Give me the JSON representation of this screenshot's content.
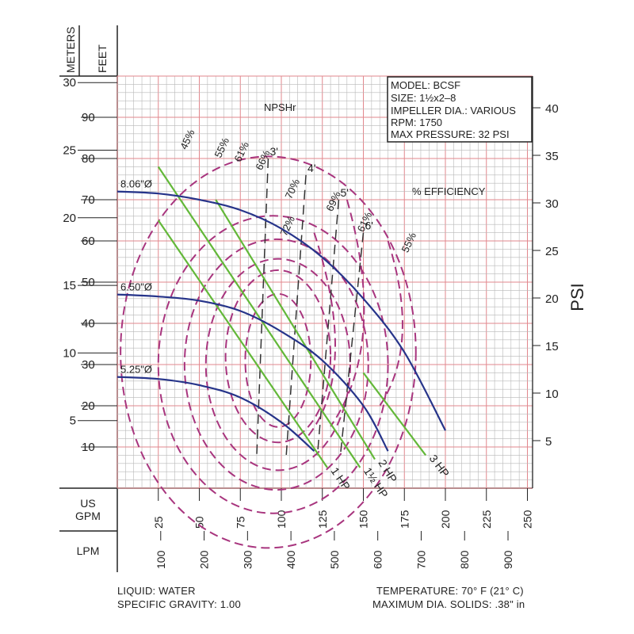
{
  "chart_data": {
    "type": "line",
    "model_box": {
      "model": "MODEL: BCSF",
      "size": "SIZE: 1½x2–8",
      "impeller": "IMPELLER DIA.: VARIOUS",
      "rpm": "RPM: 1750",
      "max_pressure": "MAX PRESSURE: 32 PSI"
    },
    "npshr_label": "NPSHr",
    "efficiency_label": "% EFFICIENCY",
    "axes": {
      "meters": {
        "label": "METERS",
        "ticks": [
          5,
          10,
          15,
          20,
          25,
          30
        ]
      },
      "feet": {
        "label": "FEET",
        "ticks": [
          10,
          20,
          30,
          40,
          50,
          60,
          70,
          80,
          90
        ],
        "range": [
          0,
          100
        ]
      },
      "psi": {
        "label": "PSI",
        "ticks": [
          5,
          10,
          15,
          20,
          25,
          30,
          35,
          40
        ]
      },
      "gpm": {
        "label": "US\nGPM",
        "ticks": [
          25,
          50,
          75,
          100,
          125,
          150,
          175,
          200,
          225,
          250
        ],
        "range": [
          0,
          250
        ]
      },
      "lpm": {
        "label": "LPM",
        "ticks": [
          100,
          200,
          300,
          400,
          500,
          600,
          700,
          800,
          900
        ]
      }
    },
    "series": [
      {
        "name": "8.06\"Ø",
        "x": [
          0,
          25,
          50,
          75,
          100,
          125,
          150,
          175,
          200
        ],
        "y": [
          72,
          71.5,
          70,
          67.5,
          63,
          56,
          46,
          33,
          14
        ]
      },
      {
        "name": "6.50\"Ø",
        "x": [
          0,
          25,
          50,
          75,
          100,
          125,
          150,
          165
        ],
        "y": [
          47,
          46.5,
          45.5,
          43,
          38,
          31,
          20,
          9
        ]
      },
      {
        "name": "5.25\"Ø",
        "x": [
          0,
          25,
          50,
          75,
          100,
          120
        ],
        "y": [
          27,
          26.5,
          25,
          22,
          16,
          9
        ]
      }
    ],
    "hp_lines": [
      {
        "name": "1 HP",
        "x": [
          25,
          128
        ],
        "y": [
          65,
          5
        ]
      },
      {
        "name": "1½ HP",
        "x": [
          25,
          148
        ],
        "y": [
          78,
          5
        ]
      },
      {
        "name": "2 HP",
        "x": [
          60,
          157
        ],
        "y": [
          70,
          7
        ]
      },
      {
        "name": "3 HP",
        "x": [
          150,
          188
        ],
        "y": [
          28,
          8
        ]
      }
    ],
    "npshr_lines": [
      {
        "name": "3'",
        "x": [
          92,
          85
        ],
        "y": [
          80,
          8
        ]
      },
      {
        "name": "4'",
        "x": [
          115,
          103
        ],
        "y": [
          76,
          8
        ]
      },
      {
        "name": "5'",
        "x": [
          135,
          122
        ],
        "y": [
          70,
          8
        ]
      },
      {
        "name": "6'",
        "x": [
          150,
          136
        ],
        "y": [
          62,
          8
        ]
      }
    ],
    "efficiency_labels": [
      "45%",
      "55%",
      "61%",
      "66%",
      "70%",
      "72%",
      "69%",
      "61%",
      "55%"
    ]
  },
  "footer": {
    "liquid": "LIQUID: WATER",
    "gravity": "SPECIFIC GRAVITY: 1.00",
    "temperature": "TEMPERATURE: 70° F (21° C)",
    "solids": "MAXIMUM DIA. SOLIDS: .38\" in"
  },
  "colors": {
    "curve": "#26348a",
    "hp": "#63b839",
    "efficiency": "#a8357e",
    "npsh": "#333333",
    "grid": "#b8b8b8",
    "grid_major": "#e2878d"
  }
}
